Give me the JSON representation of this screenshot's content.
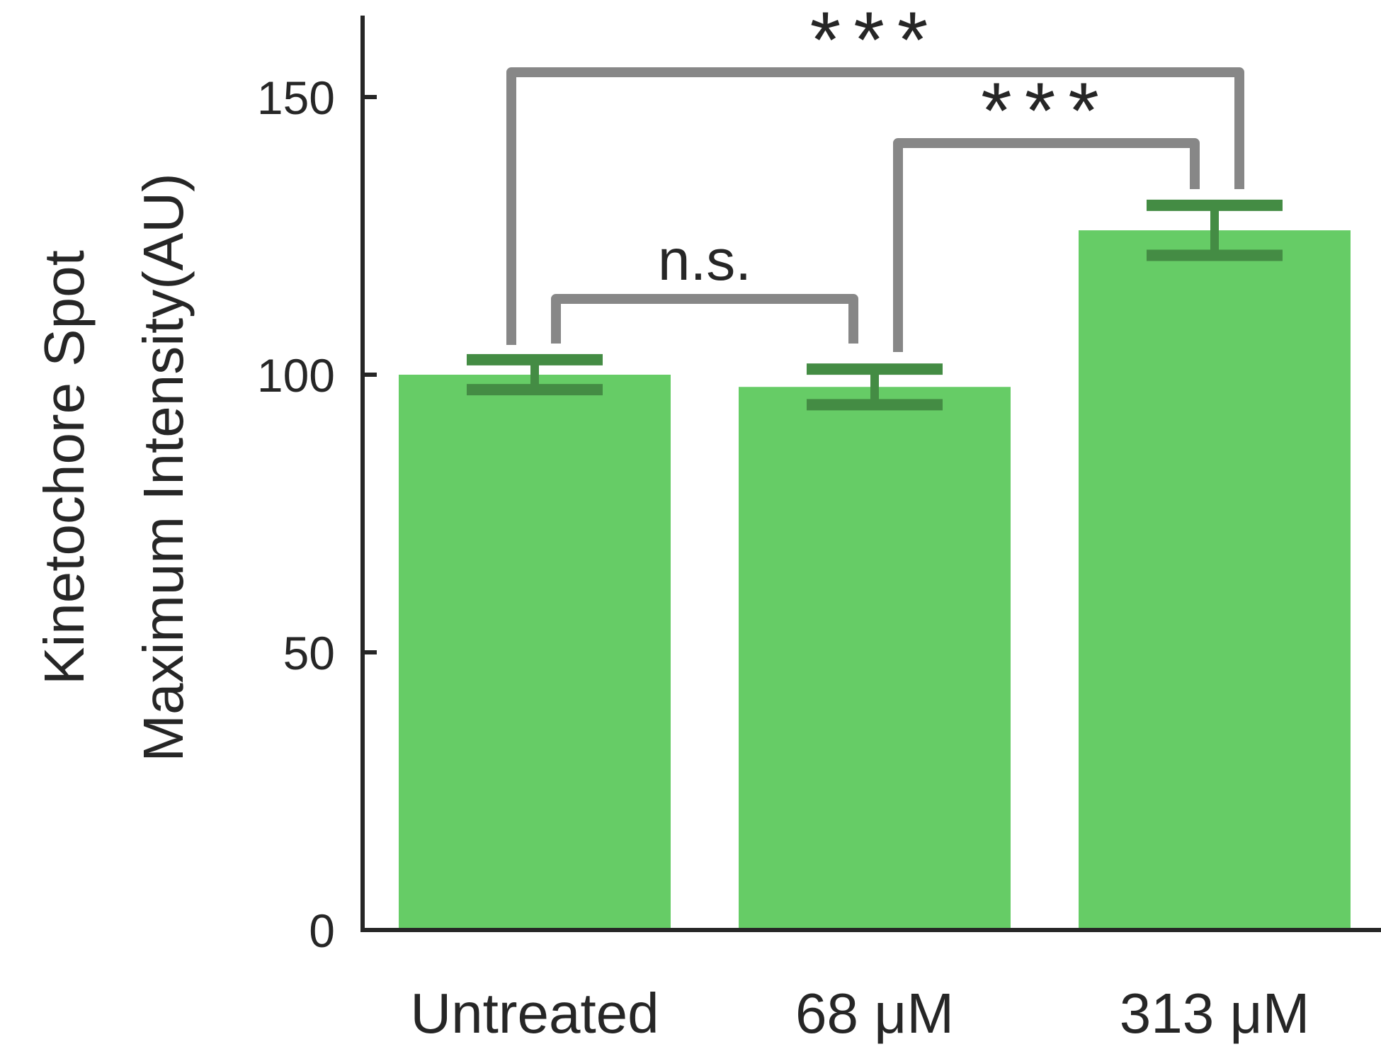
{
  "chart_data": {
    "type": "bar",
    "ylabel_lines": [
      "Kinetochore Spot",
      "Maximum Intensity(AU)"
    ],
    "categories": [
      "Untreated",
      "68 μM",
      "313 μM"
    ],
    "values": [
      100,
      97.8,
      126
    ],
    "errors": [
      2.7,
      3.2,
      4.5
    ],
    "ylim": [
      0,
      165
    ],
    "yticks": [
      0,
      50,
      100,
      150
    ],
    "ytick_labels": [
      "0",
      "50",
      "100",
      "150"
    ],
    "grid": false,
    "colors": {
      "bar": "#66cc66",
      "error": "#448c44",
      "bracket": "#878787",
      "axis": "#262626"
    },
    "significance": [
      {
        "from": 0,
        "to": 1,
        "label": "n.s."
      },
      {
        "from": 1,
        "to": 2,
        "label": "***"
      },
      {
        "from": 0,
        "to": 2,
        "label": "***"
      }
    ]
  }
}
